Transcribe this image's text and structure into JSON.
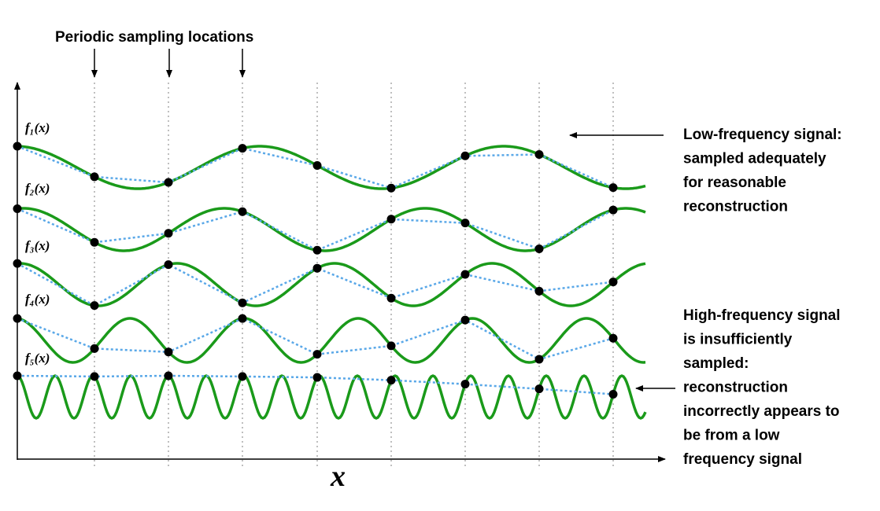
{
  "title": "Periodic sampling locations",
  "signals": [
    {
      "label": "f₁(x)"
    },
    {
      "label": "f₂(x)"
    },
    {
      "label": "f₃(x)"
    },
    {
      "label": "f₄(x)"
    },
    {
      "label": "f₅(x)"
    }
  ],
  "axis_label": "x",
  "annotations": [
    {
      "lines": [
        "Low-frequency signal:",
        "sampled adequately",
        "for reasonable",
        "reconstruction"
      ]
    },
    {
      "lines": [
        "High-frequency signal",
        "is insufficiently",
        "sampled:",
        "reconstruction",
        "incorrectly appears to",
        "be from a low",
        "frequency signal"
      ]
    }
  ]
}
